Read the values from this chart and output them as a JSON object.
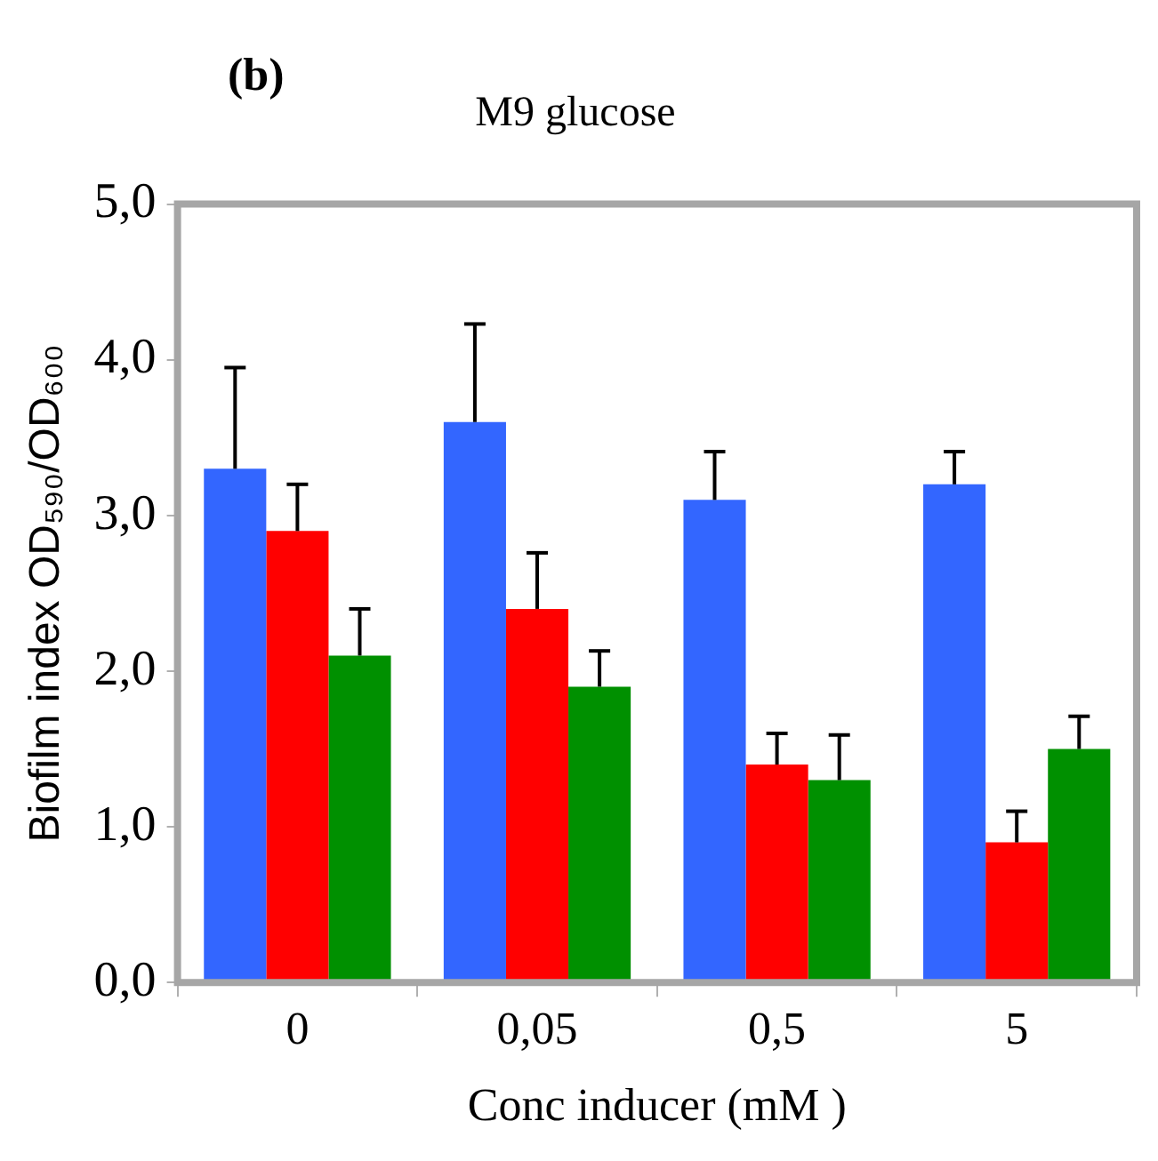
{
  "chart_data": {
    "type": "bar",
    "title": "M9 glucose",
    "annotations": [
      "(b)"
    ],
    "xlabel": "Conc inducer (mM )",
    "ylabel": "Biofilm index OD₅₉₀/OD₆₀₀",
    "categories": [
      "0",
      "0,05",
      "0,5",
      "5"
    ],
    "series": [
      {
        "color": "#3366ff",
        "values": [
          3.3,
          3.6,
          3.1,
          3.2
        ],
        "errors": [
          [
            3.3,
            3.95
          ],
          [
            3.6,
            4.23
          ],
          [
            3.1,
            3.41
          ],
          [
            3.2,
            3.41
          ]
        ]
      },
      {
        "color": "#ff0000",
        "values": [
          2.9,
          2.4,
          1.4,
          0.9
        ],
        "errors": [
          [
            2.9,
            3.2
          ],
          [
            2.4,
            2.76
          ],
          [
            1.4,
            1.6
          ],
          [
            0.9,
            1.1
          ]
        ]
      },
      {
        "color": "#009000",
        "values": [
          2.1,
          1.9,
          1.3,
          1.5
        ],
        "errors": [
          [
            2.1,
            2.4
          ],
          [
            1.9,
            2.13
          ],
          [
            1.3,
            1.59
          ],
          [
            1.5,
            1.71
          ]
        ]
      }
    ],
    "ylim": [
      0,
      5
    ],
    "yticks": [
      {
        "value": 0,
        "label": "0,0"
      },
      {
        "value": 1,
        "label": "1,0"
      },
      {
        "value": 2,
        "label": "2,0"
      },
      {
        "value": 3,
        "label": "3,0"
      },
      {
        "value": 4,
        "label": "4,0"
      },
      {
        "value": 5,
        "label": "5,0"
      }
    ],
    "grid": false,
    "legend": false
  }
}
